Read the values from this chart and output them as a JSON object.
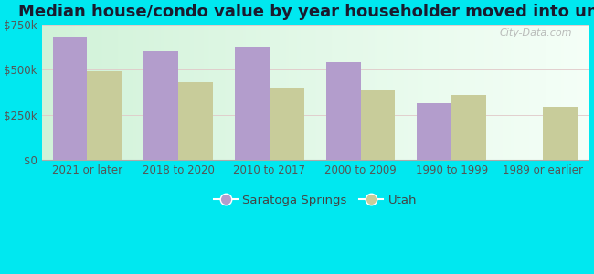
{
  "title": "Median house/condo value by year householder moved into unit",
  "categories": [
    "2021 or later",
    "2018 to 2020",
    "2010 to 2017",
    "2000 to 2009",
    "1990 to 1999",
    "1989 or earlier"
  ],
  "saratoga_springs": [
    680000,
    600000,
    625000,
    540000,
    315000,
    0
  ],
  "utah": [
    490000,
    430000,
    400000,
    385000,
    360000,
    295000
  ],
  "saratoga_color": "#b39dcc",
  "utah_color": "#c8cc9a",
  "background_outer": "#00e8f0",
  "ylim": [
    0,
    750000
  ],
  "yticks": [
    0,
    250000,
    500000,
    750000
  ],
  "ytick_labels": [
    "$0",
    "$250k",
    "$500k",
    "$750k"
  ],
  "legend_saratoga": "Saratoga Springs",
  "legend_utah": "Utah",
  "bar_width": 0.38,
  "title_fontsize": 13,
  "tick_fontsize": 8.5,
  "legend_fontsize": 9.5,
  "watermark": "City-Data.com"
}
